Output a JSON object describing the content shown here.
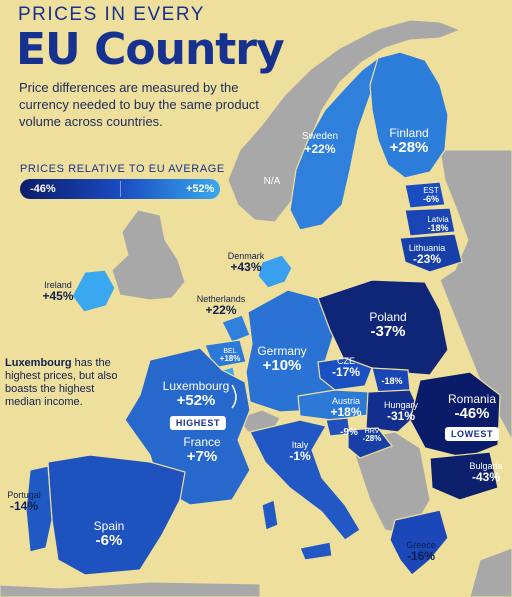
{
  "header": {
    "kicker": "PRICES IN EVERY",
    "title": "EU Country"
  },
  "subtitle": "Price differences are measured by the currency needed to buy the same product volume across countries.",
  "legend": {
    "title": "PRICES RELATIVE TO EU AVERAGE",
    "low": "-46%",
    "high": "+52%"
  },
  "na_label": "N/A",
  "note": {
    "strong": "Luxembourg",
    "rest": " has the highest prices, but also boasts the highest median income."
  },
  "badges": {
    "highest": "HIGHEST",
    "lowest": "LOWEST"
  },
  "colors": {
    "background": "#efdf9c",
    "title": "#16318f",
    "non_eu": "#a9a9a9",
    "most_expensive": "#3aa0ec",
    "cheapest": "#0b1f6e"
  },
  "countries": [
    {
      "name": "Sweden",
      "value": "+22%"
    },
    {
      "name": "Finland",
      "value": "+28%"
    },
    {
      "name": "EST",
      "value": "-6%"
    },
    {
      "name": "Latvia",
      "value": "-18%"
    },
    {
      "name": "Lithuania",
      "value": "-23%"
    },
    {
      "name": "Denmark",
      "value": "+43%"
    },
    {
      "name": "Ireland",
      "value": "+45%"
    },
    {
      "name": "Netherlands",
      "value": "+22%"
    },
    {
      "name": "BEL",
      "value": "+18%"
    },
    {
      "name": "Germany",
      "value": "+10%"
    },
    {
      "name": "Poland",
      "value": "-37%"
    },
    {
      "name": "CZE",
      "value": "-17%"
    },
    {
      "name": "",
      "value": "-18%"
    },
    {
      "name": "Luxembourg",
      "value": "+52%"
    },
    {
      "name": "Austria",
      "value": "+18%"
    },
    {
      "name": "Hungary",
      "value": "-31%"
    },
    {
      "name": "Romania",
      "value": "-46%"
    },
    {
      "name": "HRV",
      "value": "-28%"
    },
    {
      "name": "",
      "value": "-9%"
    },
    {
      "name": "France",
      "value": "+7%"
    },
    {
      "name": "Italy",
      "value": "-1%"
    },
    {
      "name": "Bulgaria",
      "value": "-43%"
    },
    {
      "name": "Portugal",
      "value": "-14%"
    },
    {
      "name": "Spain",
      "value": "-6%"
    },
    {
      "name": "Greece",
      "value": "-16%"
    }
  ]
}
